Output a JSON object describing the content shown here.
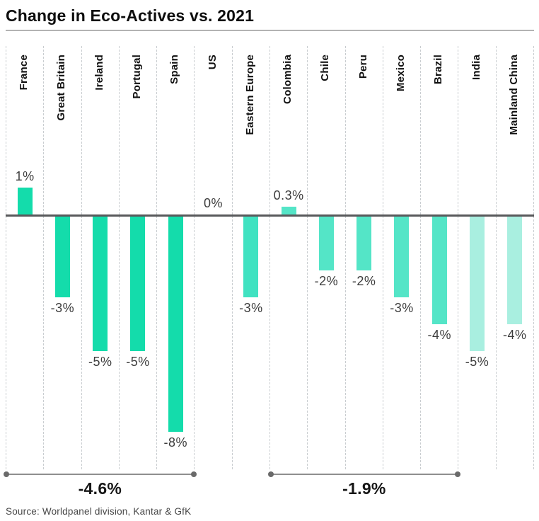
{
  "title": "Change in Eco-Actives vs. 2021",
  "source": "Source: Worldpanel division, Kantar & GfK",
  "colors": {
    "western_europe_bar": "#14dcab",
    "eastern_europe_bar": "#40e2c1",
    "latin_america_bar": "#54e5c7",
    "asia_bar": "#a9efe0",
    "zero_line": "#58595b",
    "gridline": "#c9cdd0",
    "value_label": "#3d3d3d",
    "bracket_line": "#8f8f8f"
  },
  "chart_data": {
    "type": "bar",
    "title": "Change in Eco-Actives vs. 2021",
    "xlabel": "",
    "ylabel": "",
    "baseline": 0,
    "ylim": [
      -8.5,
      1.5
    ],
    "grid": "vertical-dashed",
    "categories": [
      "France",
      "Great Britain",
      "Ireland",
      "Portugal",
      "Spain",
      "US",
      "Eastern Europe",
      "Colombia",
      "Chile",
      "Peru",
      "Mexico",
      "Brazil",
      "India",
      "Mainland China"
    ],
    "values": [
      1,
      -3,
      -5,
      -5,
      -8,
      0,
      -3,
      0.3,
      -2,
      -2,
      -3,
      -4,
      -5,
      -4
    ],
    "labels": [
      "1%",
      "-3%",
      "-5%",
      "-5%",
      "-8%",
      "0%",
      "-3%",
      "0.3%",
      "-2%",
      "-2%",
      "-3%",
      "-4%",
      "-5%",
      "-4%"
    ],
    "bar_colors": [
      "#14dcab",
      "#14dcab",
      "#14dcab",
      "#14dcab",
      "#14dcab",
      "#14dcab",
      "#40e2c1",
      "#54e5c7",
      "#54e5c7",
      "#54e5c7",
      "#54e5c7",
      "#54e5c7",
      "#a9efe0",
      "#a9efe0"
    ],
    "groups": [
      {
        "label": "-4.6%",
        "start_index": 0,
        "end_index": 4
      },
      {
        "label": "-1.9%",
        "start_index": 7,
        "end_index": 11
      }
    ]
  }
}
